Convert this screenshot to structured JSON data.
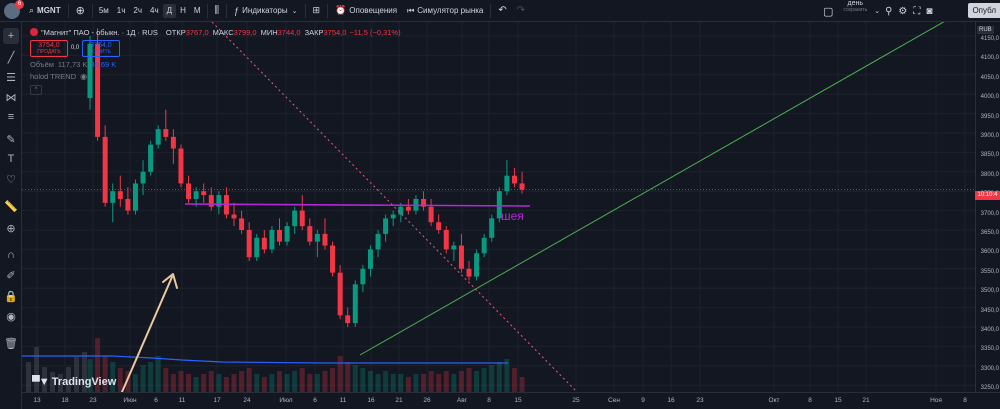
{
  "topbar": {
    "badge_count": "6",
    "symbol": "MGNT",
    "timeframes": [
      "5м",
      "1ч",
      "2ч",
      "4ч",
      "Д",
      "Н",
      "М"
    ],
    "active_timeframe": "Д",
    "indicators_label": "Индикаторы",
    "alerts_label": "Оповещения",
    "replay_label": "Симулятор рынка",
    "day_label": "день",
    "saved_label": "сохранить",
    "publish_label": "Опубл"
  },
  "legend": {
    "title": "\"Магнит\" ПАО - обыкн. · 1Д · RUS",
    "open_k": "ОТКР",
    "open_v": "3767,0",
    "high_k": "МАКС",
    "high_v": "3799,0",
    "low_k": "МИН",
    "low_v": "3744,0",
    "close_k": "ЗАКР",
    "close_v": "3754,0",
    "change_v": "−11,5 (−0,31%)",
    "sell_price": "3754,0",
    "sell_label": "ПРОДАТЬ",
    "spread": "0,0",
    "buy_price": "3754,0",
    "buy_label": "КУПИТЬ",
    "volume_label": "Объём",
    "volume_v1": "117,73 K",
    "volume_v2": "85,69 K",
    "indicator_label": "holod TREND",
    "collapse_label": "^"
  },
  "price_axis": {
    "currency": "RUB",
    "labels": [
      "4150,0",
      "4100,0",
      "4050,0",
      "4000,0",
      "3950,0",
      "3900,0",
      "3850,0",
      "3800,0",
      "3750,0",
      "3700,0",
      "3650,0",
      "3600,0",
      "3550,0",
      "3500,0",
      "3450,0",
      "3400,0",
      "3350,0",
      "3300,0",
      "3250,0"
    ],
    "current_price_label": "10:10:4"
  },
  "time_axis": {
    "labels": [
      "13",
      "18",
      "23",
      "Июн",
      "6",
      "11",
      "17",
      "24",
      "Июл",
      "6",
      "11",
      "16",
      "21",
      "26",
      "Авг",
      "8",
      "15",
      "25",
      "Сен",
      "9",
      "16",
      "23",
      "Окт",
      "8",
      "15",
      "21",
      "Ноя",
      "8"
    ]
  },
  "annotation_text": "шея",
  "logo_text": "TradingView",
  "colors": {
    "bg": "#131722",
    "up": "#089981",
    "down": "#f23645",
    "neckline": "#b02ad6",
    "trend": "#4caf50",
    "dotted": "#e65e7a",
    "arrow": "#e9c9a0",
    "volume_ma": "#2962ff"
  },
  "candles": [
    [
      3990,
      4150,
      3960,
      4130
    ],
    [
      4130,
      4170,
      3880,
      3890
    ],
    [
      3890,
      3920,
      3710,
      3720
    ],
    [
      3720,
      3770,
      3670,
      3750
    ],
    [
      3750,
      3790,
      3710,
      3730
    ],
    [
      3730,
      3760,
      3690,
      3700
    ],
    [
      3700,
      3780,
      3690,
      3770
    ],
    [
      3770,
      3830,
      3740,
      3800
    ],
    [
      3800,
      3880,
      3790,
      3870
    ],
    [
      3870,
      3920,
      3860,
      3910
    ],
    [
      3910,
      3960,
      3880,
      3890
    ],
    [
      3890,
      3910,
      3820,
      3860
    ],
    [
      3860,
      3870,
      3760,
      3770
    ],
    [
      3770,
      3790,
      3720,
      3730
    ],
    [
      3730,
      3760,
      3710,
      3750
    ],
    [
      3750,
      3770,
      3720,
      3740
    ],
    [
      3740,
      3760,
      3700,
      3710
    ],
    [
      3710,
      3750,
      3690,
      3740
    ],
    [
      3740,
      3760,
      3680,
      3690
    ],
    [
      3690,
      3720,
      3660,
      3680
    ],
    [
      3680,
      3700,
      3640,
      3650
    ],
    [
      3650,
      3670,
      3570,
      3580
    ],
    [
      3580,
      3640,
      3570,
      3630
    ],
    [
      3630,
      3650,
      3590,
      3600
    ],
    [
      3600,
      3660,
      3590,
      3650
    ],
    [
      3650,
      3680,
      3610,
      3620
    ],
    [
      3620,
      3670,
      3610,
      3660
    ],
    [
      3660,
      3710,
      3640,
      3700
    ],
    [
      3700,
      3740,
      3650,
      3660
    ],
    [
      3660,
      3680,
      3610,
      3620
    ],
    [
      3620,
      3650,
      3580,
      3640
    ],
    [
      3640,
      3680,
      3600,
      3610
    ],
    [
      3610,
      3620,
      3530,
      3540
    ],
    [
      3540,
      3560,
      3420,
      3430
    ],
    [
      3430,
      3450,
      3400,
      3410
    ],
    [
      3410,
      3520,
      3400,
      3510
    ],
    [
      3510,
      3560,
      3490,
      3550
    ],
    [
      3550,
      3610,
      3530,
      3600
    ],
    [
      3600,
      3650,
      3580,
      3640
    ],
    [
      3640,
      3690,
      3620,
      3680
    ],
    [
      3680,
      3700,
      3660,
      3690
    ],
    [
      3690,
      3720,
      3670,
      3710
    ],
    [
      3710,
      3730,
      3690,
      3700
    ],
    [
      3700,
      3740,
      3690,
      3730
    ],
    [
      3730,
      3750,
      3700,
      3710
    ],
    [
      3710,
      3730,
      3660,
      3670
    ],
    [
      3670,
      3690,
      3640,
      3650
    ],
    [
      3650,
      3660,
      3590,
      3600
    ],
    [
      3600,
      3620,
      3570,
      3610
    ],
    [
      3610,
      3640,
      3540,
      3550
    ],
    [
      3550,
      3570,
      3520,
      3530
    ],
    [
      3530,
      3600,
      3520,
      3590
    ],
    [
      3590,
      3640,
      3580,
      3630
    ],
    [
      3630,
      3690,
      3620,
      3680
    ],
    [
      3680,
      3760,
      3670,
      3750
    ],
    [
      3750,
      3830,
      3740,
      3790
    ],
    [
      3790,
      3810,
      3760,
      3770
    ],
    [
      3770,
      3800,
      3744,
      3754
    ]
  ],
  "volumes": [
    0.55,
    0.9,
    0.6,
    0.5,
    0.4,
    0.35,
    0.3,
    0.45,
    0.5,
    0.6,
    0.4,
    0.3,
    0.35,
    0.3,
    0.25,
    0.3,
    0.35,
    0.3,
    0.25,
    0.3,
    0.35,
    0.4,
    0.3,
    0.25,
    0.3,
    0.35,
    0.3,
    0.35,
    0.4,
    0.3,
    0.3,
    0.35,
    0.4,
    0.6,
    0.5,
    0.45,
    0.4,
    0.35,
    0.3,
    0.35,
    0.3,
    0.3,
    0.25,
    0.3,
    0.3,
    0.35,
    0.3,
    0.35,
    0.3,
    0.35,
    0.4,
    0.35,
    0.4,
    0.45,
    0.5,
    0.55,
    0.4,
    0.25
  ]
}
